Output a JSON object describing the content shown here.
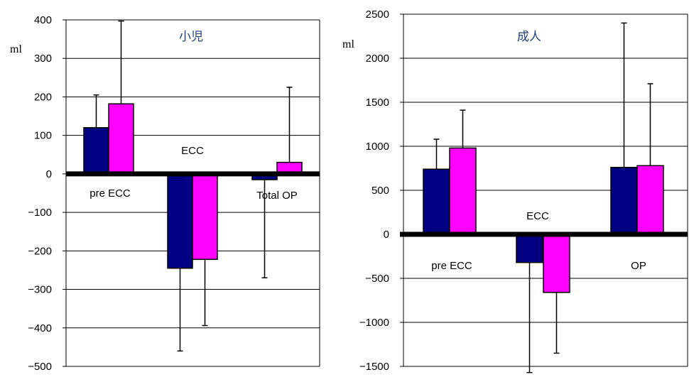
{
  "colors": {
    "series_a": "#000080",
    "series_b": "#ff00ff",
    "grid": "#000000",
    "title": "#1f3f7a"
  },
  "chart_data": [
    {
      "type": "bar",
      "title": "小児",
      "ylabel": "ml",
      "ylim": [
        -500,
        400
      ],
      "yticks": [
        -500,
        -400,
        -300,
        -200,
        -100,
        0,
        100,
        200,
        300,
        400
      ],
      "categories": [
        "pre ECC",
        "ECC",
        "Total OP"
      ],
      "series": [
        {
          "values": [
            120,
            -245,
            -15
          ],
          "err": [
            85,
            215,
            255
          ]
        },
        {
          "values": [
            182,
            -222,
            30
          ],
          "err": [
            215,
            172,
            195
          ]
        }
      ],
      "grid": true
    },
    {
      "type": "bar",
      "title": "成人",
      "ylabel": "ml",
      "ylim": [
        -1500,
        2500
      ],
      "yticks": [
        -1500,
        -1000,
        -500,
        0,
        500,
        1000,
        1500,
        2000,
        2500
      ],
      "categories": [
        "pre ECC",
        "ECC",
        "OP"
      ],
      "series": [
        {
          "values": [
            740,
            -320,
            760
          ],
          "err": [
            340,
            1250,
            1640
          ]
        },
        {
          "values": [
            980,
            -660,
            780
          ],
          "err": [
            430,
            690,
            930
          ]
        }
      ],
      "grid": true
    }
  ]
}
